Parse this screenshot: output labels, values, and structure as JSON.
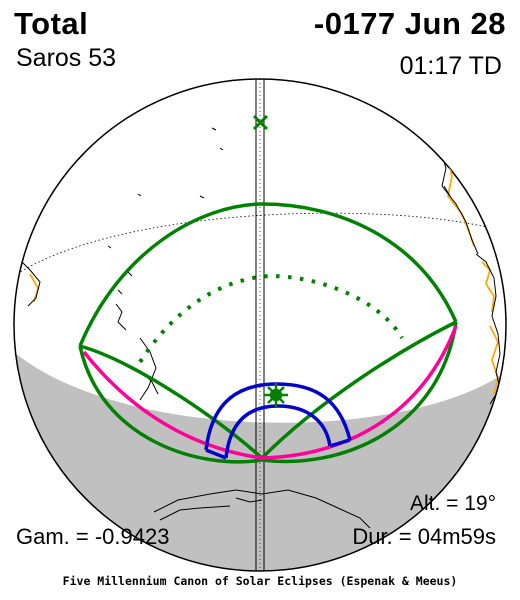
{
  "header": {
    "eclipse_type": "Total",
    "saros": "Saros  53",
    "date": "-0177 Jun 28",
    "time": "01:17 TD"
  },
  "stats": {
    "altitude": "Alt. = 19°",
    "gamma": "Gam. = -0.9423",
    "duration": "Dur. = 04m59s"
  },
  "footer": "Five Millennium Canon of Solar Eclipses (Espenak & Meeus)",
  "colors": {
    "penumbral_limits": "#008000",
    "path_limits": "#0000cc",
    "central_line": "#ff0099",
    "coastlines": "#000000",
    "borders": "#ffaa00",
    "night_side": "#c0c0c0"
  },
  "symbols": {
    "subsolar_point": "cross-marker",
    "greatest_eclipse": "star-marker"
  }
}
